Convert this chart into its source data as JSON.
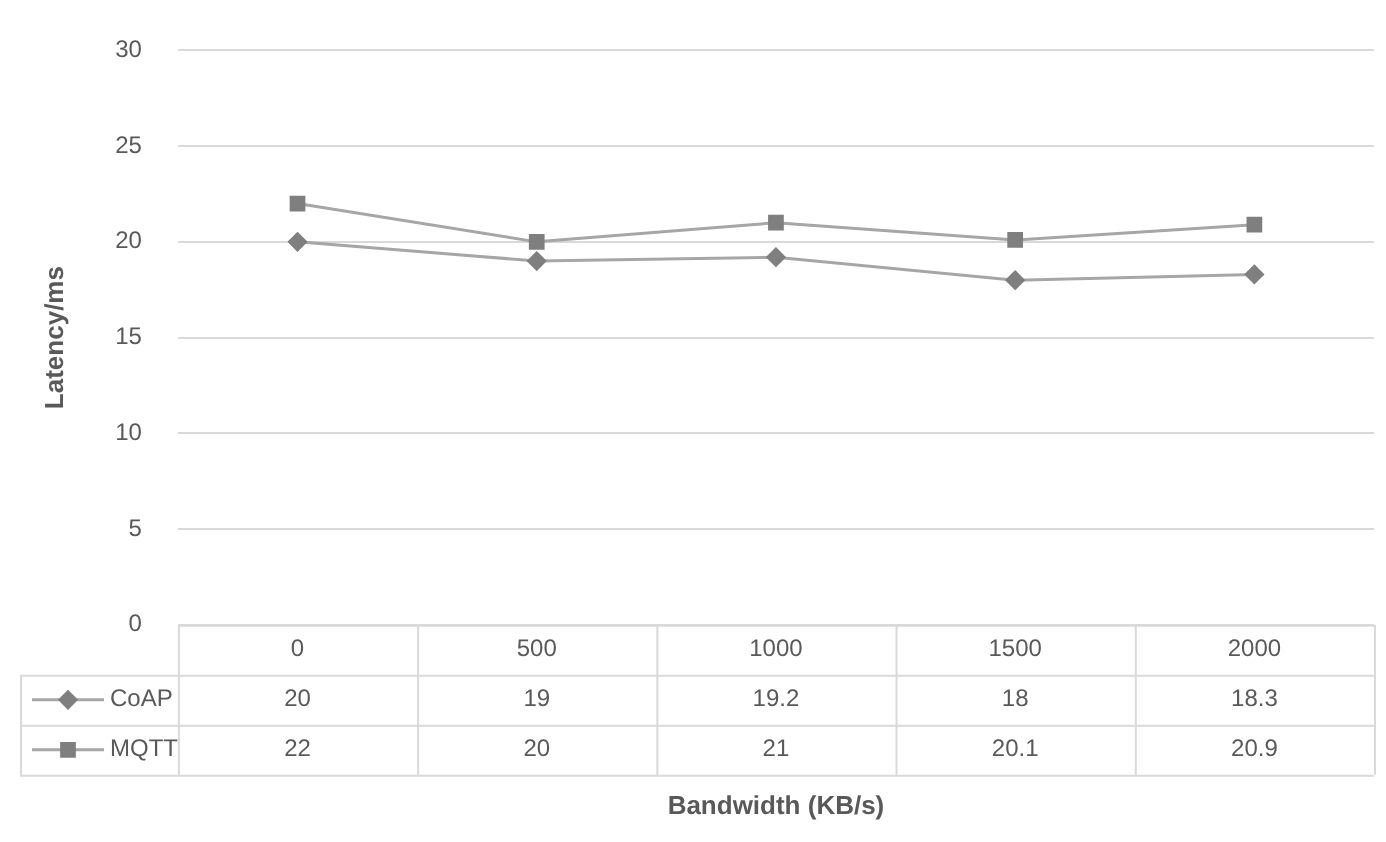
{
  "chart_data": {
    "type": "line",
    "xlabel": "Bandwidth (KB/s)",
    "ylabel": "Latency/ms",
    "categories": [
      "0",
      "500",
      "1000",
      "1500",
      "2000"
    ],
    "series": [
      {
        "name": "CoAP",
        "color": "#7f7f7f",
        "marker": "diamond",
        "values": [
          20,
          19,
          19.2,
          18,
          18.3
        ]
      },
      {
        "name": "MQTT",
        "color": "#7f7f7f",
        "marker": "square",
        "values": [
          22,
          20,
          21,
          20.1,
          20.9
        ]
      }
    ],
    "ylim": [
      0,
      30
    ],
    "yticks": [
      0,
      5,
      10,
      15,
      20,
      25,
      30
    ],
    "grid": "y",
    "legend": "bottom left",
    "data_labels": true
  }
}
